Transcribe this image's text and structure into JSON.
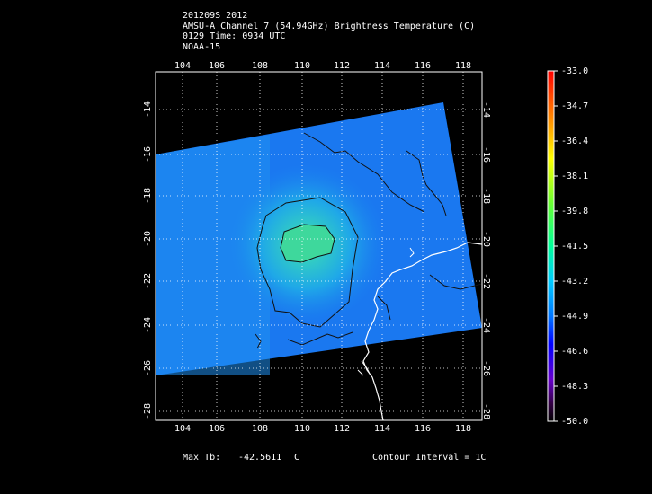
{
  "header": {
    "line1": "201209S 2012",
    "line2": "AMSU-A Channel 7 (54.94GHz) Brightness Temperature (C)",
    "line3": "0129 Time: 0934 UTC",
    "line4": "NOAA-15"
  },
  "footer": {
    "max_tb_label": "Max Tb:",
    "max_tb_value": "-42.5611",
    "max_tb_unit": "C",
    "contour_interval": "Contour Interval = 1C"
  },
  "map": {
    "lon_ticks": [
      "104",
      "106",
      "108",
      "110",
      "112",
      "114",
      "116",
      "118"
    ],
    "lat_ticks": [
      "-14",
      "-16",
      "-18",
      "-20",
      "-22",
      "-24",
      "-26",
      "-28"
    ]
  },
  "colorbar": {
    "labels": [
      "-33.0",
      "-34.7",
      "-36.4",
      "-38.1",
      "-39.8",
      "-41.5",
      "-43.2",
      "-44.9",
      "-46.6",
      "-48.3",
      "-50.0"
    ]
  },
  "colors": {
    "background": "#000000",
    "swath_main": "#1a78f0",
    "warm_core": "#3cd89a"
  }
}
